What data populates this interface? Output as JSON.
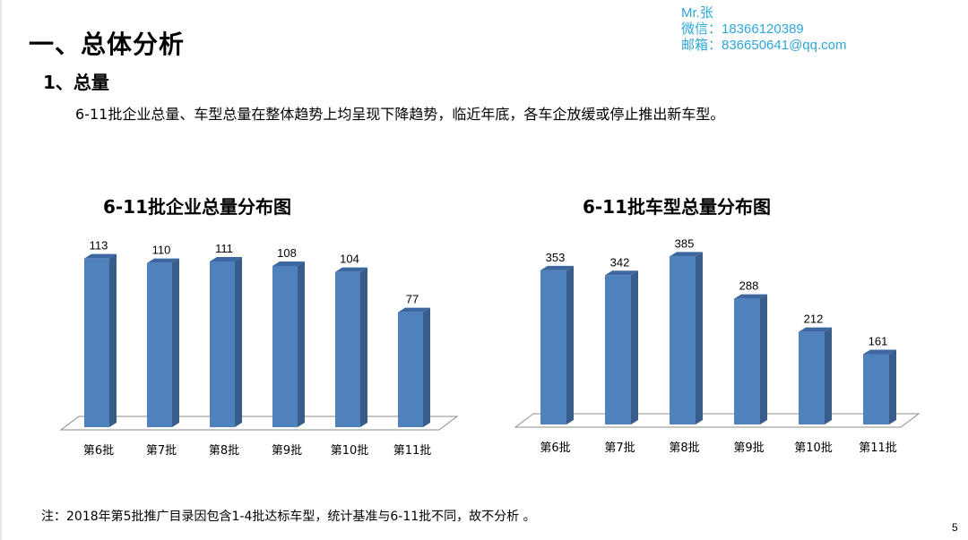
{
  "slide": {
    "title": "一、总体分析",
    "section": "1、总量",
    "summary": "6-11批企业总量、车型总量在整体趋势上均呈现下降趋势，临近年底，各车企放缓或停止推出新车型。",
    "note": "注：2018年第5批推广目录因包含1-4批达标车型，统计基准与6-11批不同，故不分析 。",
    "page_number": "5"
  },
  "contact": {
    "name": "Mr.张",
    "wechat": "微信：18366120389",
    "email": "邮箱：836650641@qq.com"
  },
  "colors": {
    "bar_front": "#4f81bd",
    "bar_side": "#385d8a",
    "bar_top": "#3c67a0",
    "contact": "#2ea7d8"
  },
  "chart_data": [
    {
      "type": "bar",
      "title": "6-11批企业总量分布图",
      "categories": [
        "第6批",
        "第7批",
        "第8批",
        "第9批",
        "第10批",
        "第11批"
      ],
      "values": [
        113,
        110,
        111,
        108,
        104,
        77
      ],
      "ylim": [
        0,
        120
      ],
      "style": "3d",
      "grid": false
    },
    {
      "type": "bar",
      "title": "6-11批车型总量分布图",
      "categories": [
        "第6批",
        "第7批",
        "第8批",
        "第9批",
        "第10批",
        "第11批"
      ],
      "values": [
        353,
        342,
        385,
        288,
        212,
        161
      ],
      "ylim": [
        0,
        400
      ],
      "style": "3d",
      "grid": false
    }
  ]
}
